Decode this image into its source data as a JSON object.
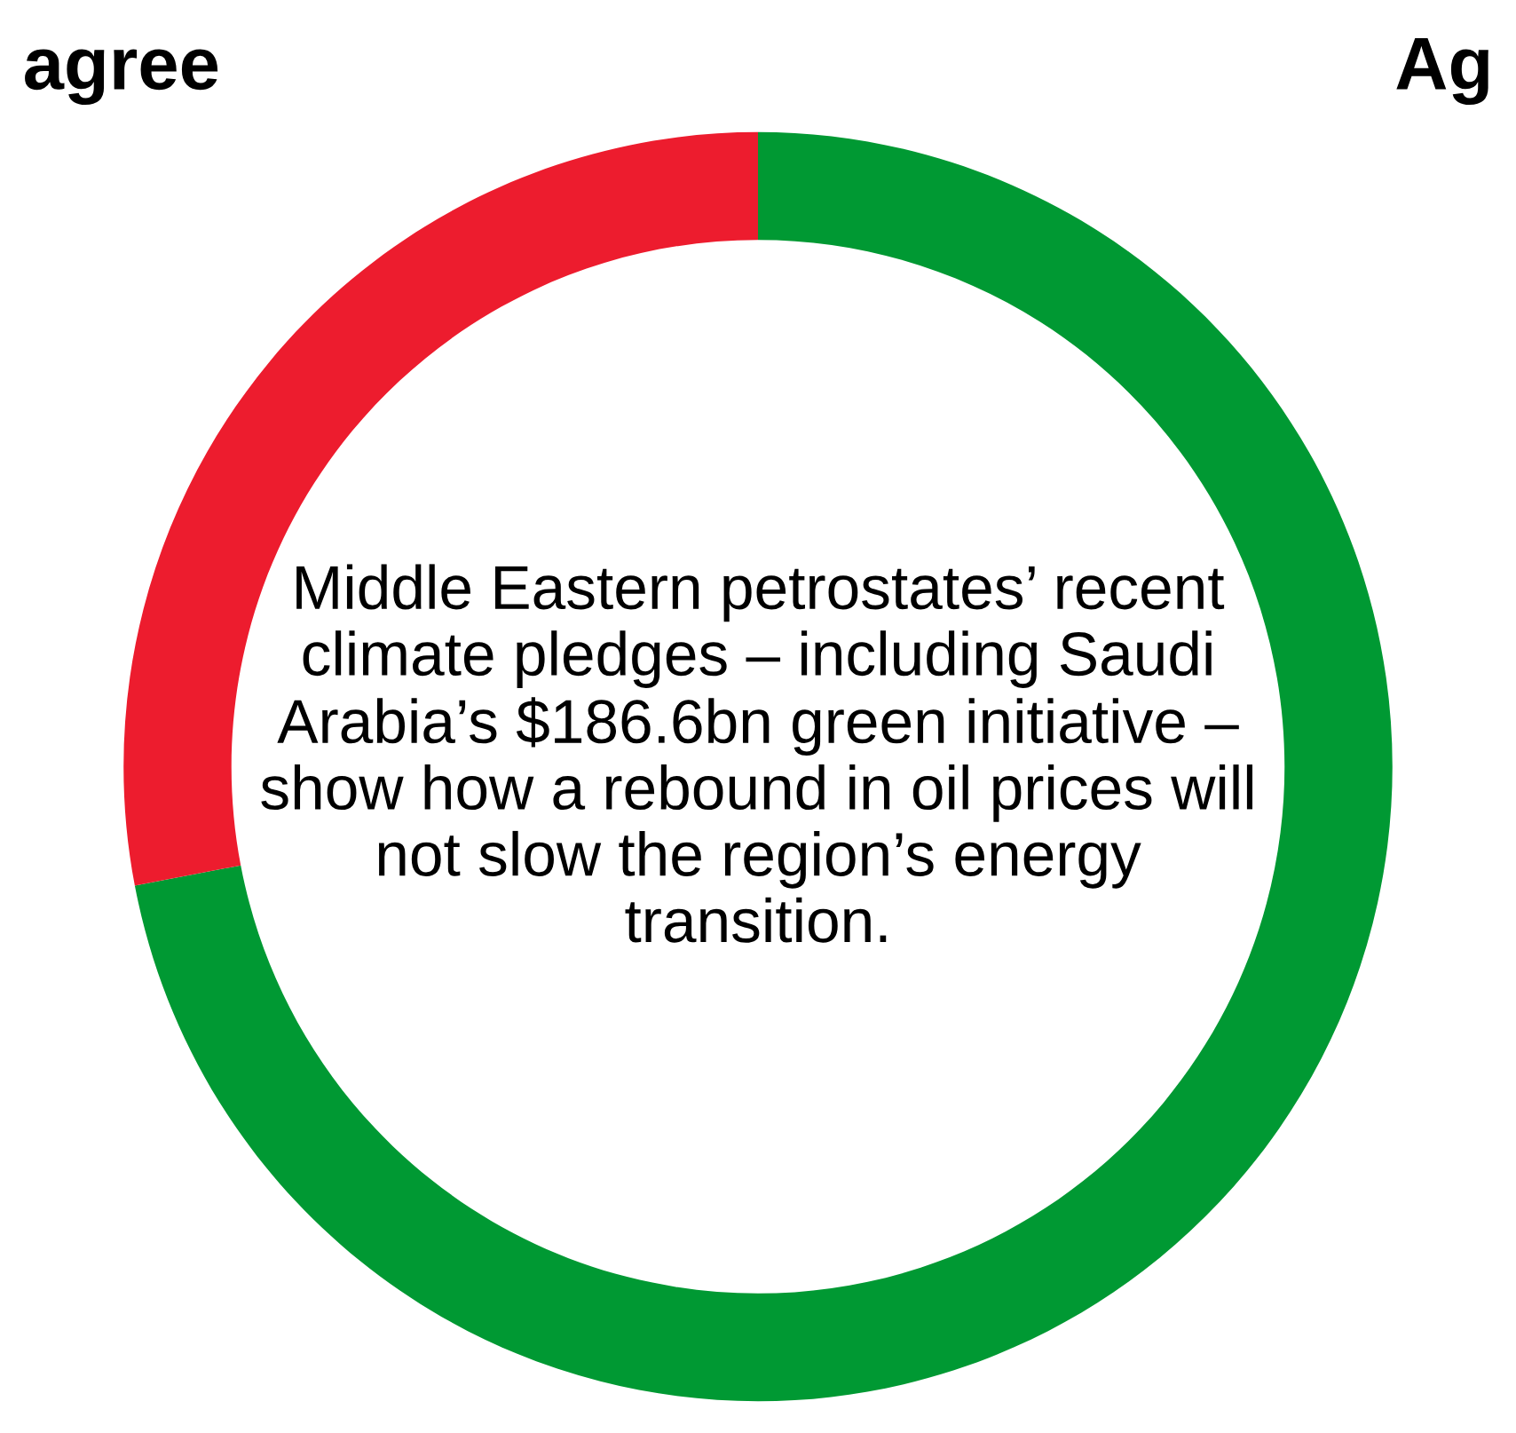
{
  "chart_data": {
    "type": "donut",
    "categories": [
      "Ag",
      "agree"
    ],
    "values": [
      72,
      28
    ],
    "colors": [
      "#009933",
      "#ed1c2e"
    ],
    "title": "Middle Eastern petrostates’ recent climate pledges – including Saudi Arabia’s $186.6bn green initiative – show how a rebound in oil prices will not slow the region’s energy transition."
  }
}
